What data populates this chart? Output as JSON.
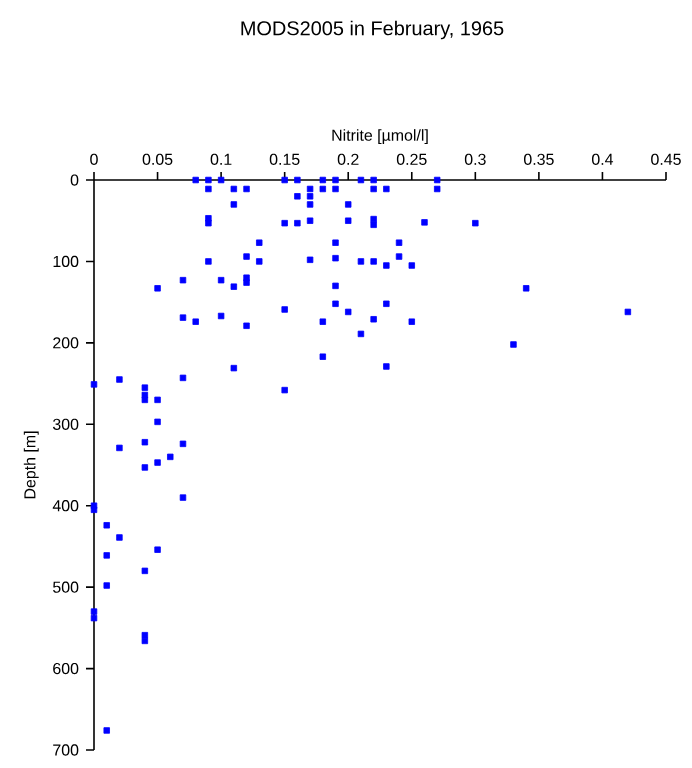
{
  "chart_data": {
    "type": "scatter",
    "title": "MODS2005 in February, 1965",
    "xlabel": "Nitrite [µmol/l]",
    "ylabel": "Depth [m]",
    "xlim": [
      0,
      0.45
    ],
    "xticks": [
      0,
      0.05,
      0.1,
      0.15,
      0.2,
      0.25,
      0.3,
      0.35,
      0.4,
      0.45
    ],
    "ylim": [
      700,
      0
    ],
    "yticks": [
      0,
      100,
      200,
      300,
      400,
      500,
      600,
      700
    ],
    "marker": "square",
    "series": [
      {
        "color": "#0000ff",
        "x": [
          0.08,
          0.09,
          0.1,
          0.15,
          0.16,
          0.18,
          0.19,
          0.21,
          0.22,
          0.27,
          0.09,
          0.11,
          0.12,
          0.17,
          0.18,
          0.19,
          0.22,
          0.23,
          0.27,
          0.16,
          0.17,
          0.11,
          0.17,
          0.2,
          0.09,
          0.09,
          0.15,
          0.16,
          0.17,
          0.2,
          0.22,
          0.22,
          0.26,
          0.3,
          0.13,
          0.19,
          0.24,
          0.12,
          0.24,
          0.09,
          0.13,
          0.17,
          0.19,
          0.21,
          0.22,
          0.23,
          0.25,
          0.07,
          0.1,
          0.12,
          0.12,
          0.11,
          0.19,
          0.05,
          0.34,
          0.19,
          0.23,
          0.15,
          0.2,
          0.42,
          0.07,
          0.1,
          0.22,
          0.08,
          0.18,
          0.25,
          0.12,
          0.21,
          0.33,
          0.18,
          0.11,
          0.23,
          0.15,
          0,
          0.02,
          0.04,
          0.07,
          0.04,
          0.04,
          0.05,
          0.05,
          0.02,
          0.04,
          0.07,
          0.06,
          0.05,
          0.04,
          0.07,
          0,
          0,
          0.01,
          0.02,
          0.05,
          0.01,
          0.04,
          0.01,
          0,
          0,
          0.04,
          0.04,
          0.01
        ],
        "values": [
          0,
          0,
          0,
          0,
          0,
          0,
          0,
          0,
          0,
          0,
          11,
          11,
          11,
          11,
          11,
          11,
          11,
          11,
          11,
          20,
          20,
          30,
          30,
          30,
          47,
          53,
          53,
          53,
          50,
          50,
          48,
          55,
          52,
          53,
          77,
          77,
          77,
          94,
          94,
          100,
          100,
          98,
          96,
          100,
          100,
          105,
          105,
          123,
          123,
          120,
          126,
          131,
          130,
          133,
          133,
          152,
          152,
          159,
          162,
          162,
          169,
          167,
          171,
          174,
          174,
          174,
          179,
          189,
          202,
          217,
          231,
          229,
          258,
          251,
          245,
          255,
          243,
          264,
          270,
          270,
          297,
          329,
          322,
          324,
          340,
          347,
          353,
          390,
          400,
          405,
          424,
          439,
          454,
          461,
          480,
          498,
          530,
          538,
          559,
          566,
          676
        ]
      }
    ]
  }
}
